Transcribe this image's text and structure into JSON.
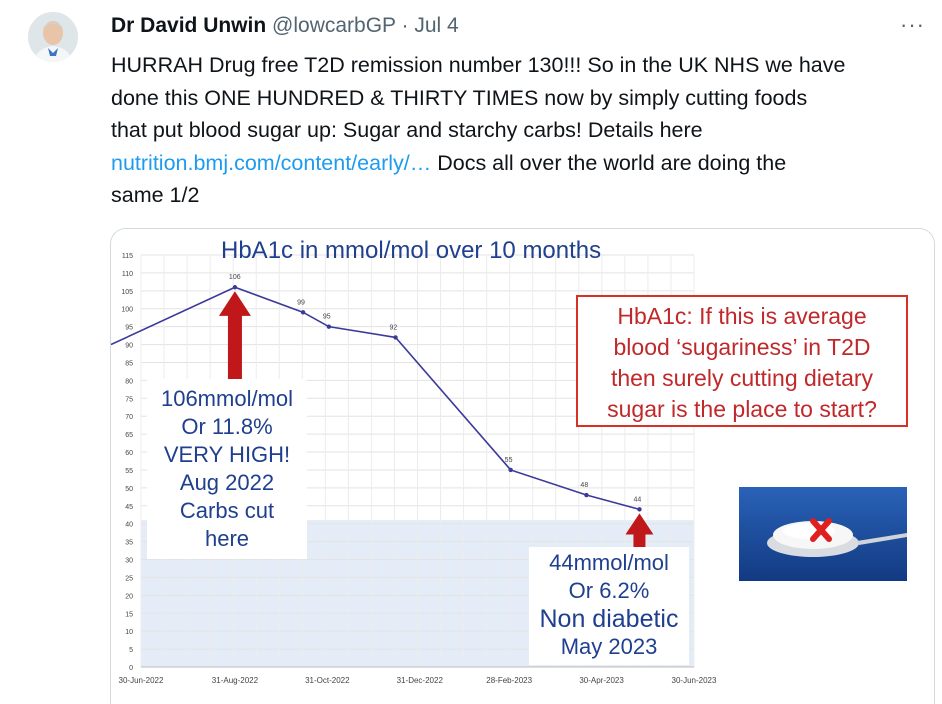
{
  "tweet": {
    "author_name": "Dr David Unwin",
    "handle": "@lowcarbGP",
    "separator": "·",
    "date": "Jul 4",
    "more_icon": "more-icon",
    "text_lines": [
      "HURRAH Drug free T2D remission number 130!!! So in the UK NHS we have",
      "done this ONE HUNDRED & THIRTY TIMES now by simply cutting foods",
      "that put blood sugar up: Sugar and starchy carbs! Details here"
    ],
    "link_text": "nutrition.bmj.com/content/early/…",
    "after_link": " Docs all over the world are doing the",
    "last_line": "same 1/2"
  },
  "chart_data": {
    "type": "line",
    "title": "HbA1c in mmol/mol over 10 months",
    "x_ticks": [
      "30-Jun-2022",
      "31-Aug-2022",
      "31-Oct-2022",
      "31-Dec-2022",
      "28-Feb-2023",
      "30-Apr-2023",
      "30-Jun-2023"
    ],
    "y_ticks": [
      0,
      5,
      10,
      15,
      20,
      25,
      30,
      35,
      40,
      45,
      50,
      55,
      60,
      65,
      70,
      75,
      80,
      85,
      90,
      95,
      100,
      105,
      110,
      115
    ],
    "ylim": [
      0,
      115
    ],
    "grid": true,
    "shaded_below": 41,
    "points": [
      {
        "x": "2022-06-30",
        "y": 90,
        "label": ""
      },
      {
        "x": "2022-08-31",
        "y": 106,
        "label": "106"
      },
      {
        "x": "2022-10-15",
        "y": 99,
        "label": "99"
      },
      {
        "x": "2022-11-01",
        "y": 95,
        "label": "95"
      },
      {
        "x": "2022-12-15",
        "y": 92,
        "label": "92"
      },
      {
        "x": "2023-03-01",
        "y": 55,
        "label": "55"
      },
      {
        "x": "2023-04-20",
        "y": 48,
        "label": "48"
      },
      {
        "x": "2023-05-25",
        "y": 44,
        "label": "44"
      }
    ],
    "line_color": "#3a3a9a",
    "arrow_color": "#c0181a"
  },
  "callouts": {
    "left": [
      "106mmol/mol",
      "Or 11.8%",
      "VERY HIGH!",
      "Aug 2022",
      "Carbs cut",
      "here"
    ],
    "bottom": [
      "44mmol/mol",
      "Or 6.2%",
      "Non diabetic",
      "May 2023"
    ],
    "note": [
      "HbA1c: If this is average",
      "blood ‘sugariness’ in T2D",
      "then surely cutting dietary",
      "sugar is the place to start?"
    ]
  },
  "colors": {
    "accent_blue": "#1f3f8f",
    "note_red": "#c0282a",
    "link": "#1d9bf0"
  }
}
